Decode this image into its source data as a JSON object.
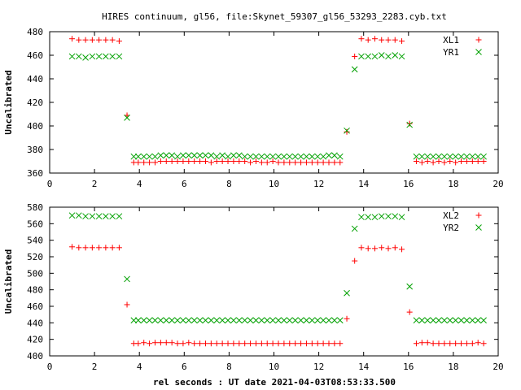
{
  "title": "HIRES continuum, gl56, file:Skynet_59307_gl56_53293_2283.cyb.txt",
  "xlabel": "rel seconds : UT date 2021-04-03T08:53:33.500",
  "colors": {
    "red": "#ff0000",
    "green": "#00a000",
    "axis": "#000000",
    "grid": "#a0a0a0"
  },
  "chart_data": [
    {
      "type": "scatter",
      "ylabel": "Uncalibrated",
      "xlim": [
        0,
        20
      ],
      "ylim": [
        360,
        480
      ],
      "xticks": [
        0,
        2,
        4,
        6,
        8,
        10,
        12,
        14,
        16,
        18,
        20
      ],
      "yticks": [
        360,
        380,
        400,
        420,
        440,
        460,
        480
      ],
      "legend": "top-right",
      "series": [
        {
          "name": "XL1",
          "marker": "plus",
          "color": "#ff0000",
          "x": [
            1.0,
            1.3,
            1.6,
            1.9,
            2.2,
            2.5,
            2.8,
            3.1,
            3.45,
            3.75,
            3.95,
            4.2,
            4.45,
            4.7,
            4.95,
            5.2,
            5.45,
            5.7,
            5.95,
            6.2,
            6.45,
            6.7,
            6.95,
            7.2,
            7.45,
            7.7,
            7.95,
            8.2,
            8.45,
            8.7,
            8.95,
            9.2,
            9.45,
            9.7,
            9.95,
            10.2,
            10.45,
            10.7,
            10.95,
            11.2,
            11.45,
            11.7,
            11.95,
            12.2,
            12.45,
            12.7,
            12.95,
            13.25,
            13.6,
            13.9,
            14.2,
            14.5,
            14.8,
            15.1,
            15.4,
            15.7,
            16.05,
            16.35,
            16.6,
            16.85,
            17.1,
            17.35,
            17.6,
            17.85,
            18.1,
            18.35,
            18.6,
            18.85,
            19.1,
            19.35
          ],
          "y": [
            474,
            473,
            473,
            473,
            473,
            473,
            473,
            472,
            409,
            369,
            369,
            369,
            369,
            369,
            370,
            370,
            370,
            370,
            370,
            370,
            370,
            370,
            370,
            369,
            370,
            370,
            370,
            370,
            370,
            370,
            369,
            370,
            369,
            369,
            370,
            369,
            369,
            369,
            369,
            369,
            369,
            369,
            369,
            369,
            369,
            369,
            369,
            395,
            459,
            474,
            473,
            474,
            473,
            473,
            473,
            472,
            402,
            370,
            369,
            370,
            369,
            370,
            369,
            370,
            369,
            370,
            370,
            370,
            370,
            370
          ]
        },
        {
          "name": "YR1",
          "marker": "cross",
          "color": "#00a000",
          "x": [
            1.0,
            1.3,
            1.6,
            1.9,
            2.2,
            2.5,
            2.8,
            3.1,
            3.45,
            3.75,
            3.95,
            4.2,
            4.45,
            4.7,
            4.95,
            5.2,
            5.45,
            5.7,
            5.95,
            6.2,
            6.45,
            6.7,
            6.95,
            7.2,
            7.45,
            7.7,
            7.95,
            8.2,
            8.45,
            8.7,
            8.95,
            9.2,
            9.45,
            9.7,
            9.95,
            10.2,
            10.45,
            10.7,
            10.95,
            11.2,
            11.45,
            11.7,
            11.95,
            12.2,
            12.45,
            12.7,
            12.95,
            13.25,
            13.6,
            13.9,
            14.2,
            14.5,
            14.8,
            15.1,
            15.4,
            15.7,
            16.05,
            16.35,
            16.6,
            16.85,
            17.1,
            17.35,
            17.6,
            17.85,
            18.1,
            18.35,
            18.6,
            18.85,
            19.1,
            19.35
          ],
          "y": [
            459,
            459,
            458,
            459,
            459,
            459,
            459,
            459,
            407,
            374,
            374,
            374,
            374,
            374,
            375,
            375,
            375,
            374,
            375,
            375,
            375,
            375,
            375,
            375,
            374,
            375,
            374,
            375,
            375,
            374,
            374,
            374,
            374,
            374,
            374,
            374,
            374,
            374,
            374,
            374,
            374,
            374,
            374,
            374,
            375,
            375,
            374,
            396,
            448,
            459,
            459,
            459,
            460,
            459,
            460,
            459,
            401,
            374,
            374,
            374,
            374,
            374,
            374,
            374,
            374,
            374,
            374,
            374,
            374,
            374
          ]
        }
      ]
    },
    {
      "type": "scatter",
      "ylabel": "Uncalibrated",
      "xlim": [
        0,
        20
      ],
      "ylim": [
        400,
        580
      ],
      "xticks": [
        0,
        2,
        4,
        6,
        8,
        10,
        12,
        14,
        16,
        18,
        20
      ],
      "yticks": [
        400,
        420,
        440,
        460,
        480,
        500,
        520,
        540,
        560,
        580
      ],
      "legend": "top-right",
      "series": [
        {
          "name": "XL2",
          "marker": "plus",
          "color": "#ff0000",
          "x": [
            1.0,
            1.3,
            1.6,
            1.9,
            2.2,
            2.5,
            2.8,
            3.1,
            3.45,
            3.75,
            3.95,
            4.2,
            4.45,
            4.7,
            4.95,
            5.2,
            5.45,
            5.7,
            5.95,
            6.2,
            6.45,
            6.7,
            6.95,
            7.2,
            7.45,
            7.7,
            7.95,
            8.2,
            8.45,
            8.7,
            8.95,
            9.2,
            9.45,
            9.7,
            9.95,
            10.2,
            10.45,
            10.7,
            10.95,
            11.2,
            11.45,
            11.7,
            11.95,
            12.2,
            12.45,
            12.7,
            12.95,
            13.25,
            13.6,
            13.9,
            14.2,
            14.5,
            14.8,
            15.1,
            15.4,
            15.7,
            16.05,
            16.35,
            16.6,
            16.85,
            17.1,
            17.35,
            17.6,
            17.85,
            18.1,
            18.35,
            18.6,
            18.85,
            19.1,
            19.35
          ],
          "y": [
            532,
            531,
            531,
            531,
            531,
            531,
            531,
            531,
            462,
            415,
            415,
            416,
            415,
            416,
            416,
            416,
            416,
            415,
            415,
            416,
            415,
            415,
            415,
            415,
            415,
            415,
            415,
            415,
            415,
            415,
            415,
            415,
            415,
            415,
            415,
            415,
            415,
            415,
            415,
            415,
            415,
            415,
            415,
            415,
            415,
            415,
            415,
            445,
            515,
            531,
            530,
            530,
            531,
            530,
            531,
            529,
            453,
            415,
            416,
            416,
            415,
            415,
            415,
            415,
            415,
            415,
            415,
            415,
            416,
            415
          ]
        },
        {
          "name": "YR2",
          "marker": "cross",
          "color": "#00a000",
          "x": [
            1.0,
            1.3,
            1.6,
            1.9,
            2.2,
            2.5,
            2.8,
            3.1,
            3.45,
            3.75,
            3.95,
            4.2,
            4.45,
            4.7,
            4.95,
            5.2,
            5.45,
            5.7,
            5.95,
            6.2,
            6.45,
            6.7,
            6.95,
            7.2,
            7.45,
            7.7,
            7.95,
            8.2,
            8.45,
            8.7,
            8.95,
            9.2,
            9.45,
            9.7,
            9.95,
            10.2,
            10.45,
            10.7,
            10.95,
            11.2,
            11.45,
            11.7,
            11.95,
            12.2,
            12.45,
            12.7,
            12.95,
            13.25,
            13.6,
            13.9,
            14.2,
            14.5,
            14.8,
            15.1,
            15.4,
            15.7,
            16.05,
            16.35,
            16.6,
            16.85,
            17.1,
            17.35,
            17.6,
            17.85,
            18.1,
            18.35,
            18.6,
            18.85,
            19.1,
            19.35
          ],
          "y": [
            570,
            570,
            569,
            569,
            569,
            569,
            569,
            569,
            493,
            443,
            443,
            443,
            443,
            443,
            443,
            443,
            443,
            443,
            443,
            443,
            443,
            443,
            443,
            443,
            443,
            443,
            443,
            443,
            443,
            443,
            443,
            443,
            443,
            443,
            443,
            443,
            443,
            443,
            443,
            443,
            443,
            443,
            443,
            443,
            443,
            443,
            443,
            476,
            554,
            568,
            568,
            568,
            569,
            569,
            569,
            568,
            484,
            443,
            443,
            443,
            443,
            443,
            443,
            443,
            443,
            443,
            443,
            443,
            443,
            443
          ]
        }
      ]
    }
  ]
}
